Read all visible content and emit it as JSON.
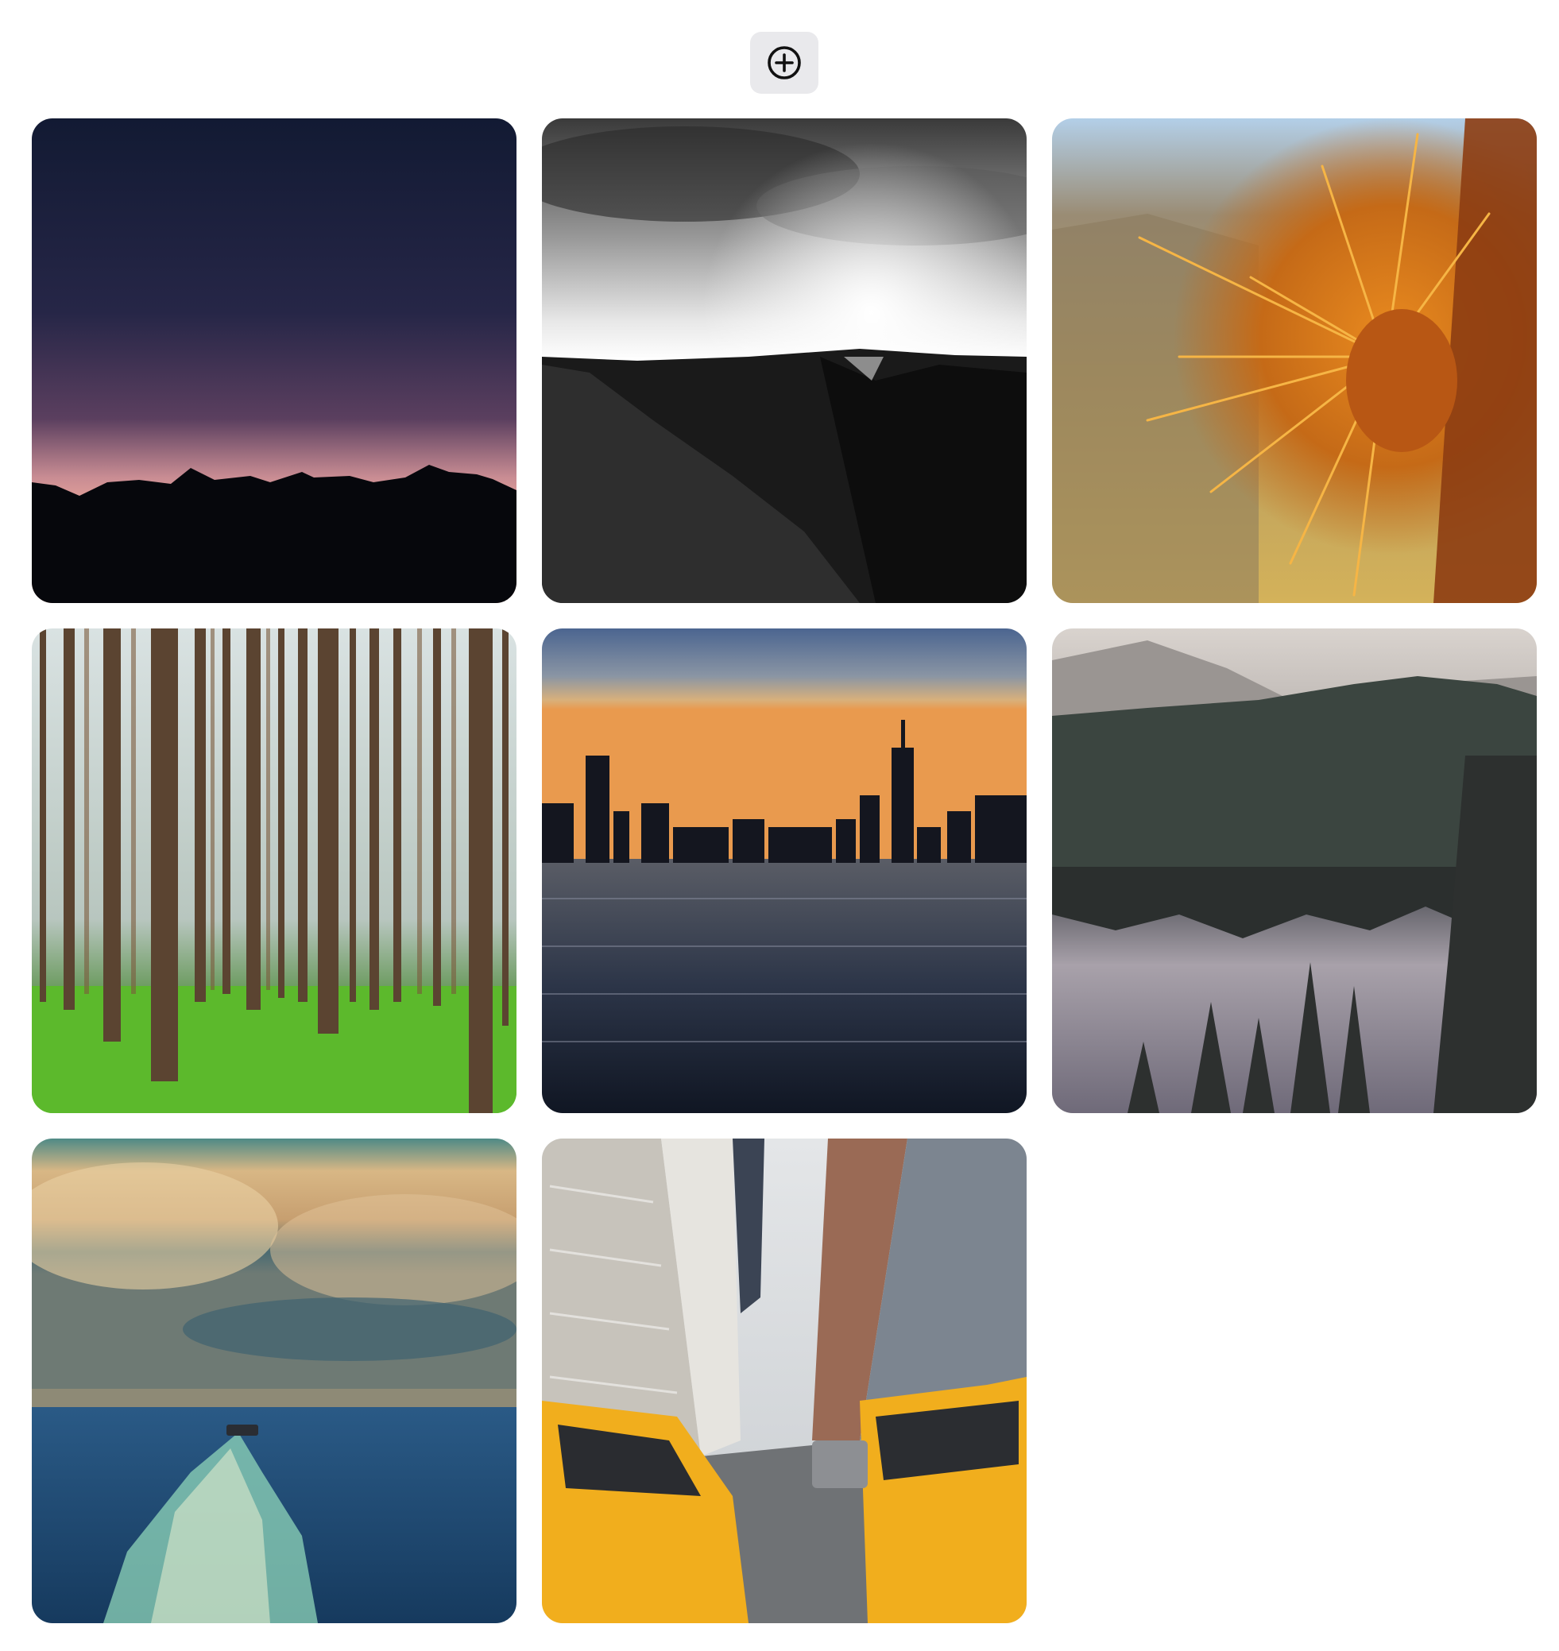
{
  "toolbar": {
    "add_icon": "plus-circle-icon",
    "button_bg": "#e9e9ec",
    "icon_color": "#111111"
  },
  "gallery": {
    "photos": [
      {
        "subject": "mountain-silhouette-dusk",
        "colors": [
          "#141a33",
          "#3a2b4f",
          "#e3a3a0",
          "#05060b"
        ]
      },
      {
        "subject": "black-and-white-sunlit-hills",
        "colors": [
          "#2b2b2b",
          "#f4f4f4",
          "#0e0e0e"
        ]
      },
      {
        "subject": "cactus-spines-closeup",
        "colors": [
          "#b6cfe5",
          "#b79b6a",
          "#e9901c",
          "#8a3c12"
        ]
      },
      {
        "subject": "pine-forest-green-floor",
        "colors": [
          "#cfd8d6",
          "#6b5236",
          "#5fb82e"
        ]
      },
      {
        "subject": "city-skyline-over-water",
        "colors": [
          "#4e6b93",
          "#e8a05d",
          "#10131c",
          "#2b3448"
        ]
      },
      {
        "subject": "misty-forest-lake",
        "colors": [
          "#d8d3cf",
          "#3f4a44",
          "#8a8490",
          "#2a2f2c"
        ]
      },
      {
        "subject": "boat-wake-stormy-sky",
        "colors": [
          "#d6b07a",
          "#3e6f7a",
          "#1f4f7c",
          "#9fe0c8"
        ]
      },
      {
        "subject": "yellow-taxis-city-street",
        "colors": [
          "#dcdcd8",
          "#5c6068",
          "#f2b01e",
          "#7a7a78"
        ]
      }
    ]
  }
}
